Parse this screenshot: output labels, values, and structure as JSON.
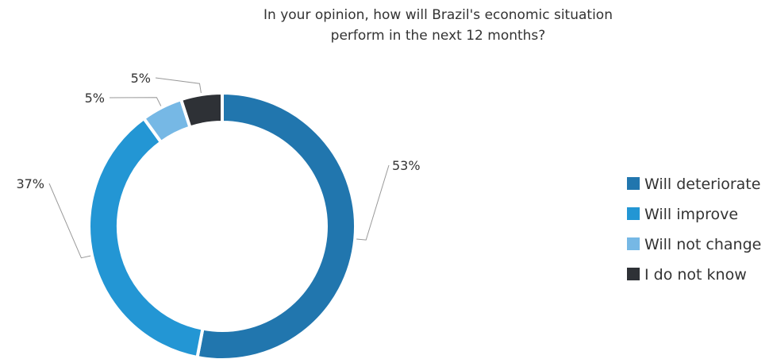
{
  "chart_data": {
    "type": "pie",
    "variant": "donut",
    "title_lines": [
      "In your opinion, how will Brazil's economic situation",
      "perform in the next 12 months?"
    ],
    "categories": [
      "Will deteriorate",
      "Will improve",
      "Will not change",
      "I do not know"
    ],
    "values": [
      53,
      37,
      5,
      5
    ],
    "data_labels": [
      "53%",
      "37%",
      "5%",
      "5%"
    ],
    "colors": [
      "#2176ae",
      "#2396d4",
      "#76b8e5",
      "#2e3136"
    ],
    "legend": {
      "position": "right",
      "entries": [
        "Will deteriorate",
        "Will improve",
        "Will not change",
        "I do not know"
      ]
    }
  }
}
